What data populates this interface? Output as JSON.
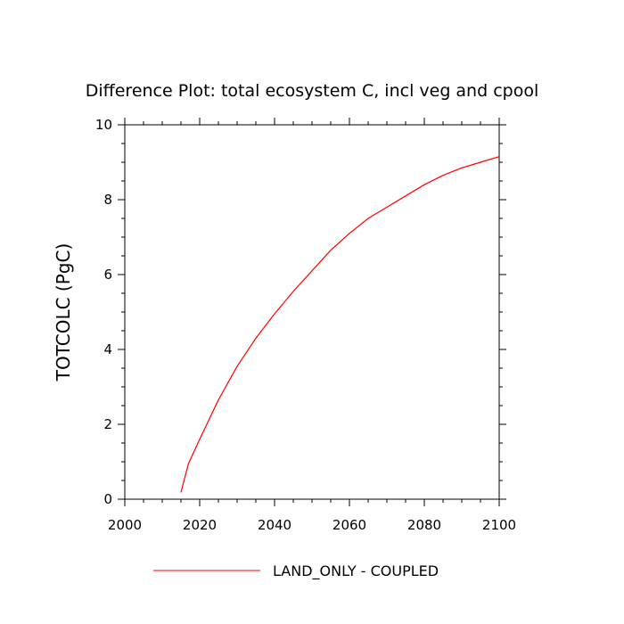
{
  "chart_data": {
    "type": "line",
    "title": "Difference Plot: total ecosystem C, incl veg and cpool",
    "xlabel": "",
    "ylabel": "TOTCOLC  (PgC)",
    "xlim": [
      2000,
      2100
    ],
    "ylim": [
      0,
      10
    ],
    "x_ticks": [
      "2000",
      "2020",
      "2040",
      "2060",
      "2080",
      "2100"
    ],
    "y_ticks": [
      "0",
      "2",
      "4",
      "6",
      "8",
      "10"
    ],
    "grid": false,
    "legend_position": "bottom-center",
    "series": [
      {
        "name": "LAND_ONLY - COUPLED",
        "color": "#ff0000",
        "x": [
          2015,
          2017,
          2020,
          2025,
          2030,
          2035,
          2040,
          2045,
          2050,
          2055,
          2060,
          2065,
          2070,
          2075,
          2080,
          2085,
          2090,
          2095,
          2100
        ],
        "y": [
          0.18,
          0.95,
          1.6,
          2.65,
          3.55,
          4.3,
          4.95,
          5.55,
          6.1,
          6.65,
          7.1,
          7.5,
          7.8,
          8.1,
          8.4,
          8.65,
          8.85,
          9.0,
          9.15
        ]
      }
    ]
  }
}
